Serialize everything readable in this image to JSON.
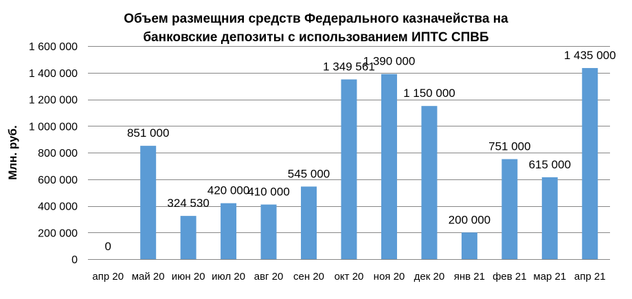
{
  "chart_data": {
    "type": "bar",
    "title_lines": [
      "Объем размещния средств Федерального казначейства на",
      "банковские депозиты с использованием ИПТС СПВБ"
    ],
    "ylabel": "Млн. руб.",
    "xlabel": "",
    "ylim": [
      0,
      1600000
    ],
    "yticks": [
      0,
      200000,
      400000,
      600000,
      800000,
      1000000,
      1200000,
      1400000,
      1600000
    ],
    "ytick_labels": [
      "0",
      "200 000",
      "400 000",
      "600 000",
      "800 000",
      "1 000 000",
      "1 200 000",
      "1 400 000",
      "1 600 000"
    ],
    "categories": [
      "апр 20",
      "май 20",
      "июн 20",
      "июл 20",
      "авг 20",
      "сен 20",
      "окт 20",
      "ноя 20",
      "дек 20",
      "янв 21",
      "фев 21",
      "мар 21",
      "апр 21"
    ],
    "values": [
      0,
      851000,
      324530,
      420000,
      410000,
      545000,
      1349561,
      1390000,
      1150000,
      200000,
      751000,
      615000,
      1435000
    ],
    "value_labels": [
      "0",
      "851 000",
      "324 530",
      "420 000",
      "410 000",
      "545 000",
      "1 349 561",
      "1 390 000",
      "1 150 000",
      "200 000",
      "751 000",
      "615 000",
      "1 435 000"
    ],
    "grid": true,
    "legend": "none",
    "bar_color": "#5b9bd5",
    "grid_color": "#868686"
  }
}
